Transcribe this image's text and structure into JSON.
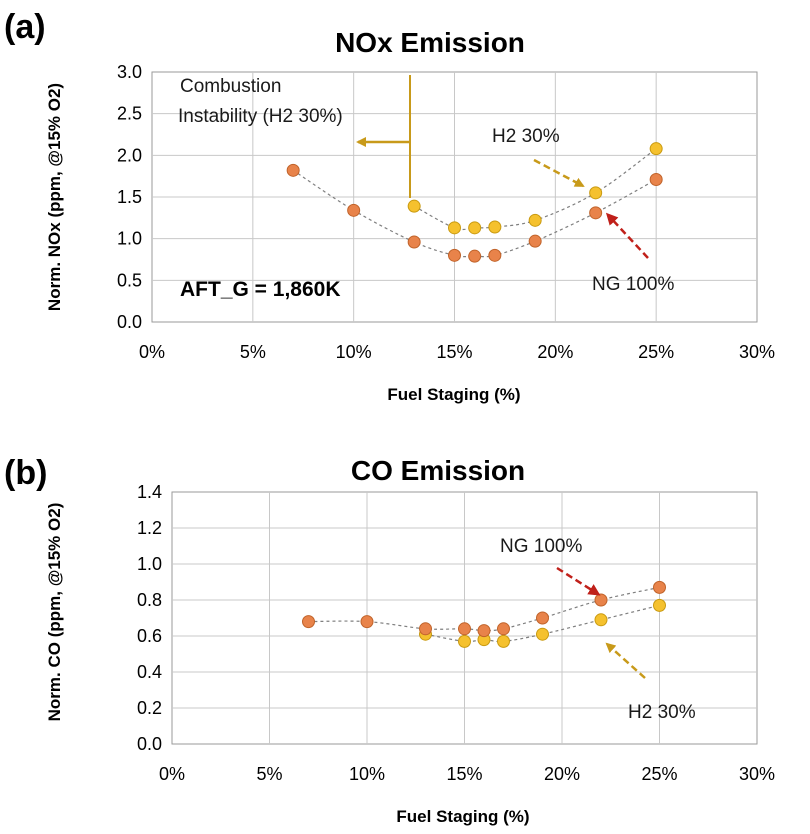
{
  "chart_data": [
    {
      "panel": "(a)",
      "type": "scatter",
      "title": "NOx Emission",
      "xlabel": "Fuel Staging (%)",
      "ylabel": "Norm. NOx (ppm, @15% O2)",
      "xlim": [
        0,
        30
      ],
      "ylim": [
        0,
        3
      ],
      "xticks": [
        0,
        5,
        10,
        15,
        20,
        25,
        30
      ],
      "xtick_labels": [
        "0%",
        "5%",
        "10%",
        "15%",
        "20%",
        "25%",
        "30%"
      ],
      "yticks": [
        0,
        0.5,
        1,
        1.5,
        2,
        2.5,
        3
      ],
      "ytick_labels": [
        "0.0",
        "0.5",
        "1.0",
        "1.5",
        "2.0",
        "2.5",
        "3.0"
      ],
      "grid": true,
      "series": [
        {
          "name": "NG 100%",
          "color": "#e8834a",
          "edge": "#c0632a",
          "x": [
            7,
            10,
            13,
            15,
            16,
            17,
            19,
            22,
            25
          ],
          "y": [
            1.82,
            1.34,
            0.96,
            0.8,
            0.79,
            0.8,
            0.97,
            1.31,
            1.71
          ]
        },
        {
          "name": "H2 30%",
          "color": "#f5c12e",
          "edge": "#c99a10",
          "x": [
            13,
            15,
            16,
            17,
            19,
            22,
            25
          ],
          "y": [
            1.39,
            1.13,
            1.13,
            1.14,
            1.22,
            1.55,
            2.08
          ]
        }
      ],
      "annotations": {
        "instability_line1": "Combustion",
        "instability_line2": "Instability (H2 30%)",
        "h2_label": "H2 30%",
        "ng_label": "NG 100%",
        "aft_label": "AFT_G = 1,860K"
      },
      "colors": {
        "gold_arrow": "#c89a1a",
        "red_arrow": "#c0201a"
      }
    },
    {
      "panel": "(b)",
      "type": "scatter",
      "title": "CO Emission",
      "xlabel": "Fuel Staging (%)",
      "ylabel": "Norm. CO (ppm, @15% O2)",
      "xlim": [
        0,
        30
      ],
      "ylim": [
        0,
        1.4
      ],
      "xticks": [
        0,
        5,
        10,
        15,
        20,
        25,
        30
      ],
      "xtick_labels": [
        "0%",
        "5%",
        "10%",
        "15%",
        "20%",
        "25%",
        "30%"
      ],
      "yticks": [
        0,
        0.2,
        0.4,
        0.6,
        0.8,
        1.0,
        1.2,
        1.4
      ],
      "ytick_labels": [
        "0.0",
        "0.2",
        "0.4",
        "0.6",
        "0.8",
        "1.0",
        "1.2",
        "1.4"
      ],
      "grid": true,
      "series": [
        {
          "name": "NG 100%",
          "color": "#e8834a",
          "edge": "#c0632a",
          "x": [
            7,
            10,
            13,
            15,
            16,
            17,
            19,
            22,
            25
          ],
          "y": [
            0.68,
            0.68,
            0.64,
            0.64,
            0.63,
            0.64,
            0.7,
            0.8,
            0.87
          ]
        },
        {
          "name": "H2 30%",
          "color": "#f5c12e",
          "edge": "#c99a10",
          "x": [
            13,
            15,
            16,
            17,
            19,
            22,
            25
          ],
          "y": [
            0.61,
            0.57,
            0.58,
            0.57,
            0.61,
            0.69,
            0.77
          ]
        }
      ],
      "annotations": {
        "ng_label": "NG 100%",
        "h2_label": "H2 30%"
      },
      "colors": {
        "gold_arrow": "#c89a1a",
        "red_arrow": "#c0201a"
      }
    }
  ]
}
